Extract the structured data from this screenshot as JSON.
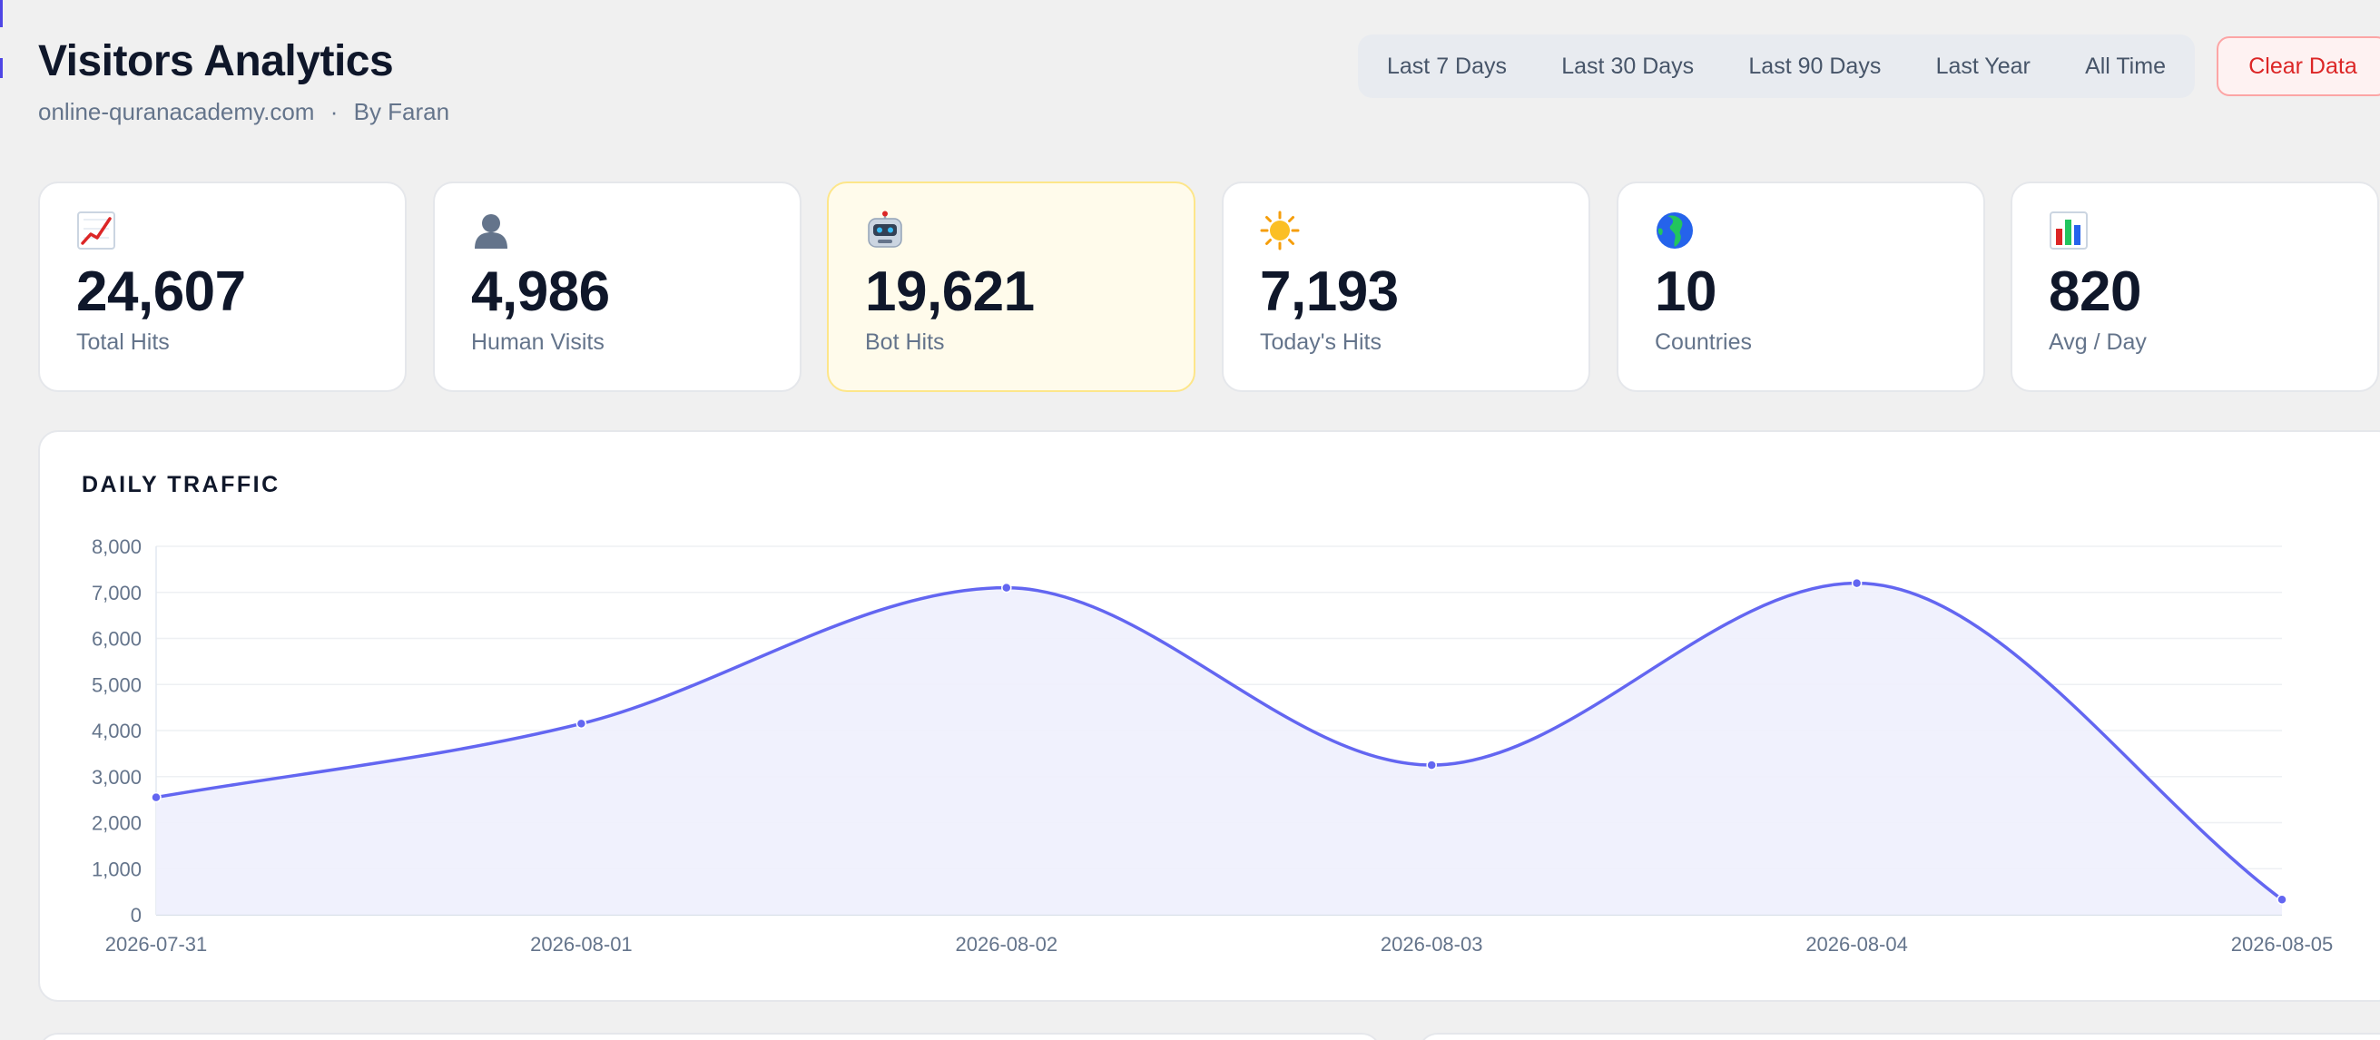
{
  "header": {
    "title": "Visitors Analytics",
    "site": "online-quranacademy.com",
    "separator": "·",
    "author": "By Faran"
  },
  "toolbar": {
    "ranges": [
      "Last 7 Days",
      "Last 30 Days",
      "Last 90 Days",
      "Last Year",
      "All Time"
    ],
    "clear_label": "Clear Data"
  },
  "stats": [
    {
      "icon": "chart-increasing-icon",
      "value": "24,607",
      "label": "Total Hits"
    },
    {
      "icon": "person-silhouette-icon",
      "value": "4,986",
      "label": "Human Visits"
    },
    {
      "icon": "robot-icon",
      "value": "19,621",
      "label": "Bot Hits"
    },
    {
      "icon": "sun-icon",
      "value": "7,193",
      "label": "Today's Hits"
    },
    {
      "icon": "globe-icon",
      "value": "10",
      "label": "Countries"
    },
    {
      "icon": "bar-chart-icon",
      "value": "820",
      "label": "Avg / Day"
    }
  ],
  "colors": {
    "accent": "#6366f1",
    "fill": "#eef0fd",
    "danger": "#dc2626",
    "highlight_bg": "#fffbeb"
  },
  "chart_data": {
    "type": "area",
    "title": "DAILY TRAFFIC",
    "x": [
      "2026-07-31",
      "2026-08-01",
      "2026-08-02",
      "2026-08-03",
      "2026-08-04",
      "2026-08-05"
    ],
    "values": [
      2550,
      4150,
      7100,
      3250,
      7200,
      330
    ],
    "ylim": [
      0,
      8000
    ],
    "yticks": [
      0,
      1000,
      2000,
      3000,
      4000,
      5000,
      6000,
      7000,
      8000
    ],
    "ytick_labels": [
      "0",
      "1,000",
      "2,000",
      "3,000",
      "4,000",
      "5,000",
      "6,000",
      "7,000",
      "8,000"
    ],
    "grid": true,
    "smooth": true
  }
}
